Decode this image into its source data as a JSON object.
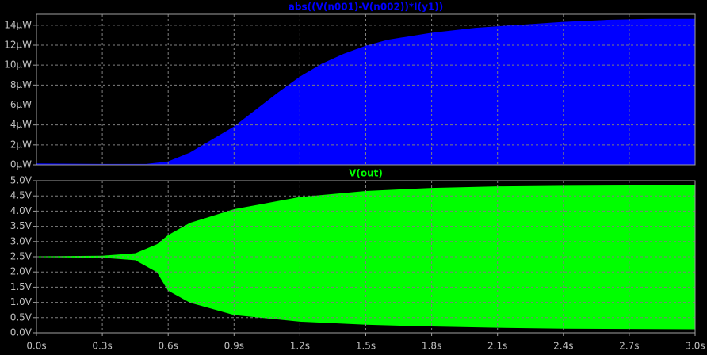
{
  "chart_data": [
    {
      "type": "area",
      "title": "abs((V(n001)-V(n002))*I(y1))",
      "title_color": "#0000ff",
      "x": [
        0,
        0.3,
        0.5,
        0.6,
        0.7,
        0.8,
        0.9,
        1.0,
        1.1,
        1.2,
        1.3,
        1.4,
        1.5,
        1.6,
        1.8,
        2.0,
        2.2,
        2.4,
        2.6,
        2.8,
        3.0
      ],
      "series": [
        {
          "color": "#0000ff",
          "values": [
            0.1,
            0.05,
            0.05,
            0.3,
            1.2,
            2.5,
            3.8,
            5.5,
            7.2,
            8.8,
            10.1,
            11.1,
            11.9,
            12.5,
            13.2,
            13.7,
            14.0,
            14.3,
            14.5,
            14.6,
            14.6
          ]
        }
      ],
      "ylim": [
        0,
        15.1
      ],
      "yticks": [
        {
          "value": 0,
          "label": "0µW"
        },
        {
          "value": 2,
          "label": "2µW"
        },
        {
          "value": 4,
          "label": "4µW"
        },
        {
          "value": 6,
          "label": "6µW"
        },
        {
          "value": 8,
          "label": "8µW"
        },
        {
          "value": 10,
          "label": "10µW"
        },
        {
          "value": 12,
          "label": "12µW"
        },
        {
          "value": 14,
          "label": "14µW"
        }
      ],
      "grid": true
    },
    {
      "type": "band",
      "title": "V(out)",
      "title_color": "#00ff00",
      "x": [
        0,
        0.3,
        0.45,
        0.55,
        0.6,
        0.7,
        0.9,
        1.2,
        1.5,
        1.8,
        2.1,
        2.4,
        2.7,
        3.0
      ],
      "series": [
        {
          "color": "#00ff00",
          "values": [
            2.5,
            2.52,
            2.6,
            2.9,
            3.2,
            3.6,
            4.05,
            4.45,
            4.65,
            4.75,
            4.8,
            4.82,
            4.83,
            4.83
          ]
        },
        {
          "color": "#00ff00",
          "values": [
            2.5,
            2.48,
            2.4,
            2.0,
            1.4,
            1.0,
            0.6,
            0.38,
            0.28,
            0.22,
            0.18,
            0.15,
            0.14,
            0.13
          ]
        }
      ],
      "xlim": [
        0,
        3
      ],
      "xticks": [
        {
          "value": 0,
          "label": "0.0s"
        },
        {
          "value": 0.3,
          "label": "0.3s"
        },
        {
          "value": 0.6,
          "label": "0.6s"
        },
        {
          "value": 0.9,
          "label": "0.9s"
        },
        {
          "value": 1.2,
          "label": "1.2s"
        },
        {
          "value": 1.5,
          "label": "1.5s"
        },
        {
          "value": 1.8,
          "label": "1.8s"
        },
        {
          "value": 2.1,
          "label": "2.1s"
        },
        {
          "value": 2.4,
          "label": "2.4s"
        },
        {
          "value": 2.7,
          "label": "2.7s"
        },
        {
          "value": 3.0,
          "label": "3.0s"
        }
      ],
      "ylim": [
        0,
        5
      ],
      "yticks": [
        {
          "value": 0,
          "label": "0.0V"
        },
        {
          "value": 0.5,
          "label": "0.5V"
        },
        {
          "value": 1.0,
          "label": "1.0V"
        },
        {
          "value": 1.5,
          "label": "1.5V"
        },
        {
          "value": 2.0,
          "label": "2.0V"
        },
        {
          "value": 2.5,
          "label": "2.5V"
        },
        {
          "value": 3.0,
          "label": "3.0V"
        },
        {
          "value": 3.5,
          "label": "3.5V"
        },
        {
          "value": 4.0,
          "label": "4.0V"
        },
        {
          "value": 4.5,
          "label": "4.5V"
        },
        {
          "value": 5.0,
          "label": "5.0V"
        }
      ],
      "grid": true
    }
  ]
}
